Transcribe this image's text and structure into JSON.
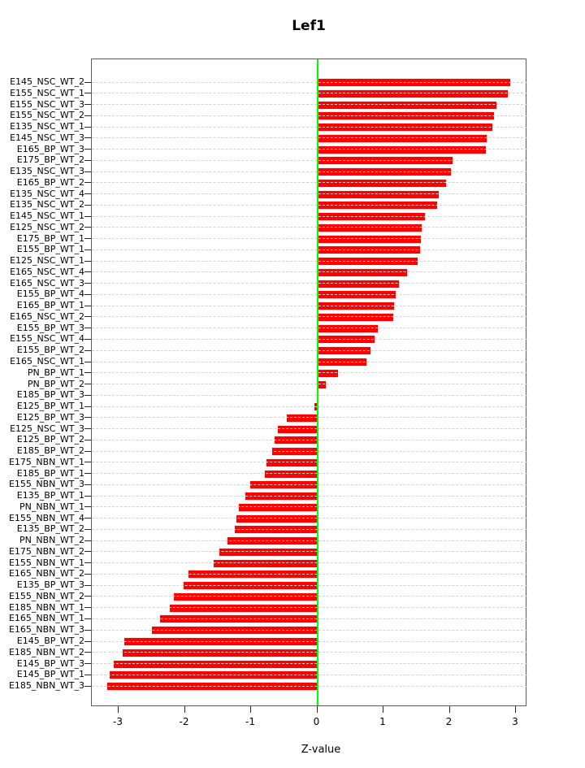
{
  "title": "Lef1",
  "x_axis_title": "Z-value",
  "chart_data": {
    "type": "bar",
    "orientation": "horizontal",
    "title": "Lef1",
    "xlabel": "Z-value",
    "ylabel": "",
    "xlim": [
      -3.4,
      3.17
    ],
    "x_ticks": [
      -3,
      -2,
      -1,
      0,
      1,
      2,
      3
    ],
    "grid": "dashed horizontal line per category, light gray",
    "legend": "none",
    "bar_color": "#ff0000",
    "zero_line_color": "#00ff00",
    "categories": [
      "E145_NSC_WT_2",
      "E155_NSC_WT_1",
      "E155_NSC_WT_3",
      "E155_NSC_WT_2",
      "E135_NSC_WT_1",
      "E145_NSC_WT_3",
      "E165_BP_WT_3",
      "E175_BP_WT_2",
      "E135_NSC_WT_3",
      "E165_BP_WT_2",
      "E135_NSC_WT_4",
      "E135_NSC_WT_2",
      "E145_NSC_WT_1",
      "E125_NSC_WT_2",
      "E175_BP_WT_1",
      "E155_BP_WT_1",
      "E125_NSC_WT_1",
      "E165_NSC_WT_4",
      "E165_NSC_WT_3",
      "E155_BP_WT_4",
      "E165_BP_WT_1",
      "E165_NSC_WT_2",
      "E155_BP_WT_3",
      "E155_NSC_WT_4",
      "E155_BP_WT_2",
      "E165_NSC_WT_1",
      "PN_BP_WT_1",
      "PN_BP_WT_2",
      "E185_BP_WT_3",
      "E125_BP_WT_1",
      "E125_BP_WT_3",
      "E125_NSC_WT_3",
      "E125_BP_WT_2",
      "E185_BP_WT_2",
      "E175_NBN_WT_1",
      "E185_BP_WT_1",
      "E155_NBN_WT_3",
      "E135_BP_WT_1",
      "PN_NBN_WT_1",
      "E155_NBN_WT_4",
      "E135_BP_WT_2",
      "PN_NBN_WT_2",
      "E175_NBN_WT_2",
      "E155_NBN_WT_1",
      "E165_NBN_WT_2",
      "E135_BP_WT_3",
      "E155_NBN_WT_2",
      "E185_NBN_WT_1",
      "E165_NBN_WT_1",
      "E165_NBN_WT_3",
      "E145_BP_WT_2",
      "E185_NBN_WT_2",
      "E145_BP_WT_3",
      "E145_BP_WT_1",
      "E185_NBN_WT_3"
    ],
    "values": [
      2.92,
      2.88,
      2.7,
      2.67,
      2.64,
      2.56,
      2.54,
      2.04,
      2.02,
      1.94,
      1.83,
      1.81,
      1.63,
      1.58,
      1.56,
      1.55,
      1.51,
      1.35,
      1.23,
      1.18,
      1.16,
      1.15,
      0.91,
      0.86,
      0.8,
      0.74,
      0.31,
      0.13,
      0.01,
      -0.04,
      -0.46,
      -0.59,
      -0.65,
      -0.68,
      -0.77,
      -0.79,
      -1.01,
      -1.09,
      -1.18,
      -1.22,
      -1.24,
      -1.36,
      -1.48,
      -1.57,
      -1.95,
      -2.02,
      -2.16,
      -2.23,
      -2.38,
      -2.5,
      -2.92,
      -2.94,
      -3.07,
      -3.13,
      -3.17
    ]
  }
}
